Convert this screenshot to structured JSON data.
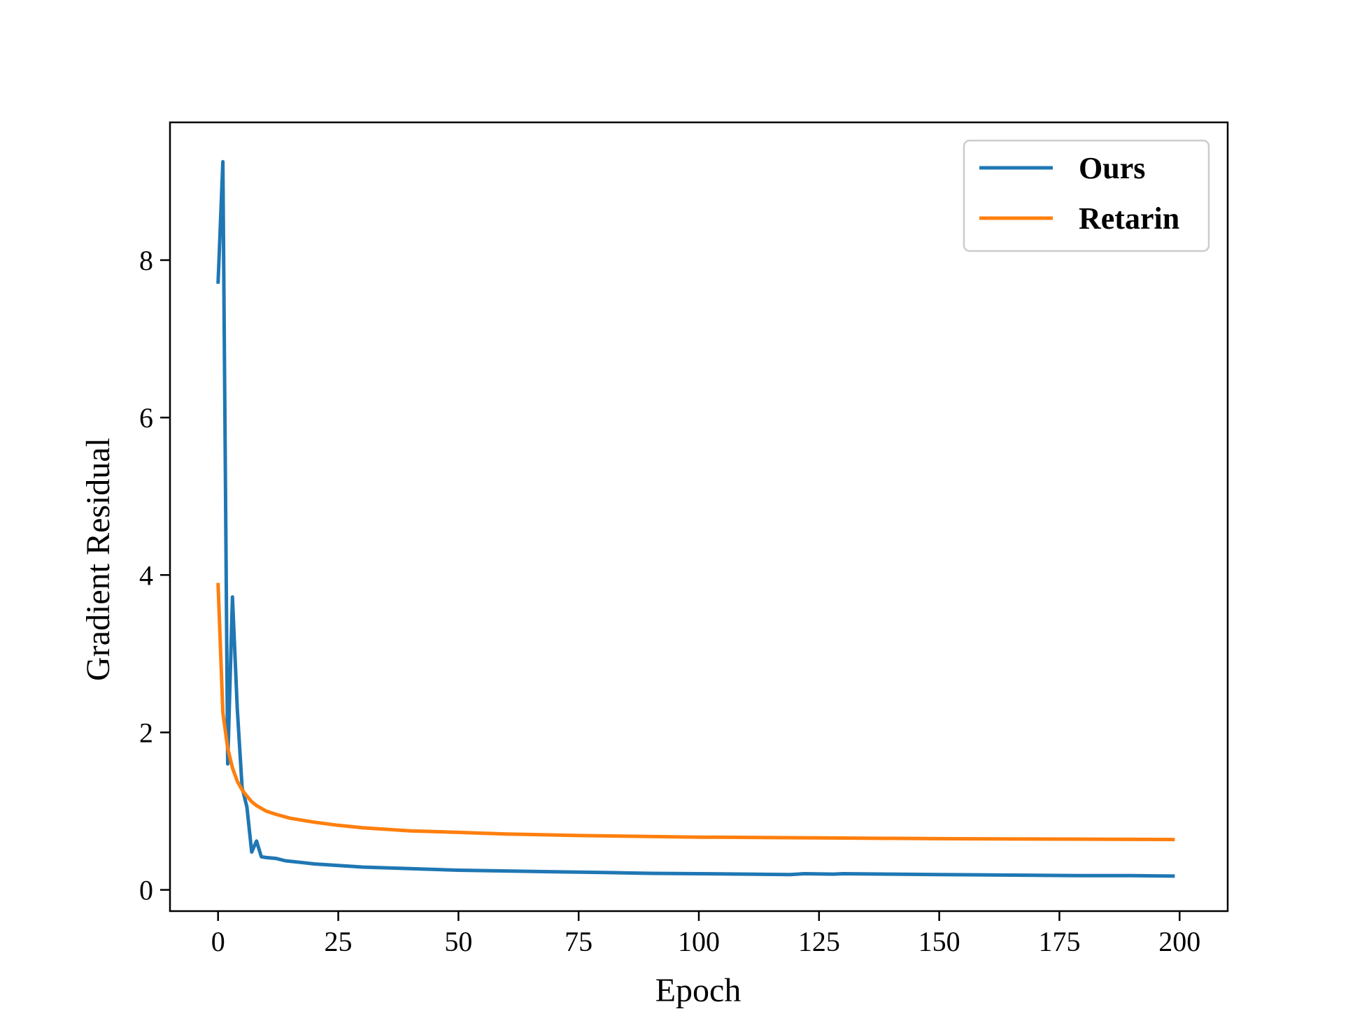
{
  "chart_data": {
    "type": "line",
    "title": "",
    "xlabel": "Epoch",
    "ylabel": "Gradient Residual",
    "xlim": [
      -10,
      210
    ],
    "ylim": [
      -0.27,
      9.75
    ],
    "xticks": [
      0,
      25,
      50,
      75,
      100,
      125,
      150,
      175,
      200
    ],
    "yticks": [
      0,
      2,
      4,
      6,
      8
    ],
    "grid": false,
    "legend": "top-right",
    "series": [
      {
        "name": "Ours",
        "color": "#1f77b4",
        "points": [
          [
            0,
            7.7
          ],
          [
            1,
            9.25
          ],
          [
            2,
            1.6
          ],
          [
            3,
            3.72
          ],
          [
            4,
            2.3
          ],
          [
            5,
            1.3
          ],
          [
            6,
            1.05
          ],
          [
            7,
            0.48
          ],
          [
            8,
            0.62
          ],
          [
            9,
            0.42
          ],
          [
            10,
            0.41
          ],
          [
            12,
            0.4
          ],
          [
            14,
            0.37
          ],
          [
            17,
            0.35
          ],
          [
            20,
            0.33
          ],
          [
            25,
            0.31
          ],
          [
            30,
            0.29
          ],
          [
            40,
            0.27
          ],
          [
            50,
            0.25
          ],
          [
            60,
            0.24
          ],
          [
            70,
            0.23
          ],
          [
            80,
            0.22
          ],
          [
            90,
            0.21
          ],
          [
            100,
            0.205
          ],
          [
            110,
            0.2
          ],
          [
            119,
            0.195
          ],
          [
            122,
            0.205
          ],
          [
            128,
            0.2
          ],
          [
            130,
            0.205
          ],
          [
            140,
            0.2
          ],
          [
            150,
            0.195
          ],
          [
            160,
            0.19
          ],
          [
            170,
            0.185
          ],
          [
            180,
            0.18
          ],
          [
            190,
            0.18
          ],
          [
            199,
            0.175
          ]
        ]
      },
      {
        "name": "Retarin",
        "color": "#ff7f0e",
        "points": [
          [
            0,
            3.9
          ],
          [
            1,
            2.25
          ],
          [
            2,
            1.8
          ],
          [
            3,
            1.55
          ],
          [
            4,
            1.38
          ],
          [
            5,
            1.27
          ],
          [
            6,
            1.19
          ],
          [
            7,
            1.12
          ],
          [
            8,
            1.07
          ],
          [
            10,
            1.0
          ],
          [
            12,
            0.96
          ],
          [
            15,
            0.91
          ],
          [
            20,
            0.86
          ],
          [
            25,
            0.82
          ],
          [
            30,
            0.79
          ],
          [
            40,
            0.75
          ],
          [
            50,
            0.73
          ],
          [
            60,
            0.71
          ],
          [
            75,
            0.69
          ],
          [
            100,
            0.67
          ],
          [
            125,
            0.66
          ],
          [
            150,
            0.65
          ],
          [
            175,
            0.645
          ],
          [
            199,
            0.64
          ]
        ]
      }
    ]
  }
}
